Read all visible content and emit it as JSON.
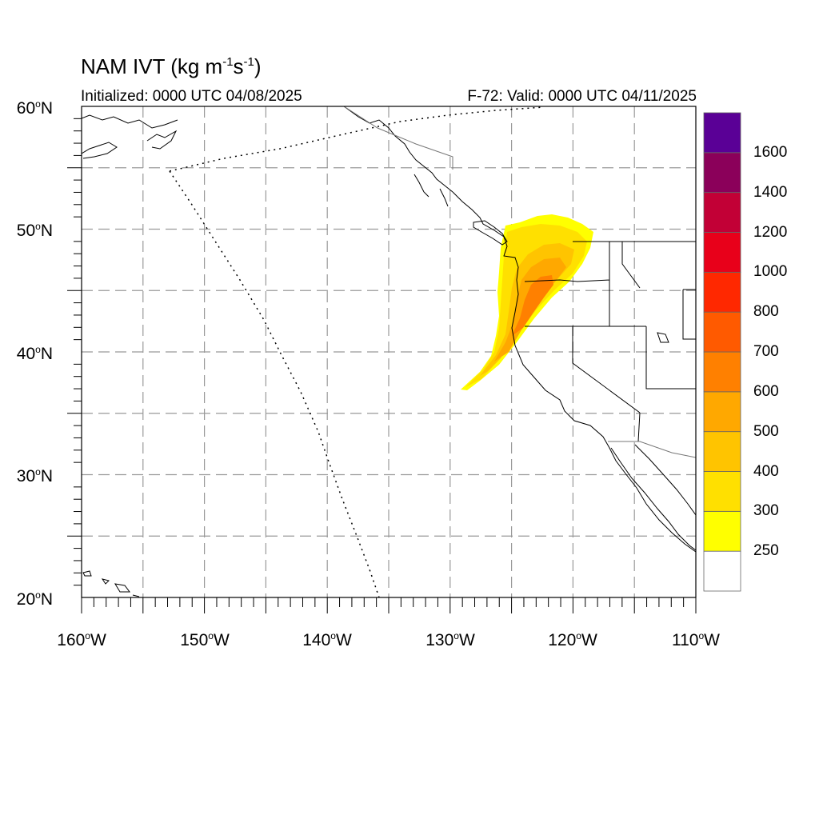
{
  "map": {
    "title": {
      "main": "NAM IVT (kg m",
      "exp1": "-1",
      "mid": "s",
      "exp2": "-1",
      "close": ")"
    },
    "initialized": "Initialized: 0000 UTC 04/08/2025",
    "valid": "F-72: Valid: 0000 UTC 04/11/2025",
    "extent": {
      "lon_min": -160,
      "lon_max": -110,
      "lat_min": 20,
      "lat_max": 60
    },
    "grid_lons": [
      -155,
      -150,
      -145,
      -140,
      -135,
      -130,
      -125,
      -120,
      -115
    ],
    "grid_lats": [
      25,
      30,
      35,
      40,
      45,
      50,
      55
    ],
    "lat_labels": [
      {
        "deg": "60",
        "hemi": "N"
      },
      {
        "deg": "50",
        "hemi": "N"
      },
      {
        "deg": "40",
        "hemi": "N"
      },
      {
        "deg": "30",
        "hemi": "N"
      },
      {
        "deg": "20",
        "hemi": "N"
      }
    ],
    "lon_labels": [
      {
        "deg": "160",
        "hemi": "W"
      },
      {
        "deg": "150",
        "hemi": "W"
      },
      {
        "deg": "140",
        "hemi": "W"
      },
      {
        "deg": "130",
        "hemi": "W"
      },
      {
        "deg": "120",
        "hemi": "W"
      },
      {
        "deg": "110",
        "hemi": "W"
      }
    ]
  },
  "colorbar": {
    "colors": [
      "#ffffff",
      "#ffff00",
      "#ffe000",
      "#ffc400",
      "#ffa800",
      "#ff8000",
      "#ff5a00",
      "#ff2800",
      "#e8001a",
      "#c20036",
      "#8b005a",
      "#5a0096"
    ],
    "labels": [
      "250",
      "300",
      "400",
      "500",
      "600",
      "700",
      "800",
      "1000",
      "1200",
      "1400",
      "1600"
    ]
  }
}
